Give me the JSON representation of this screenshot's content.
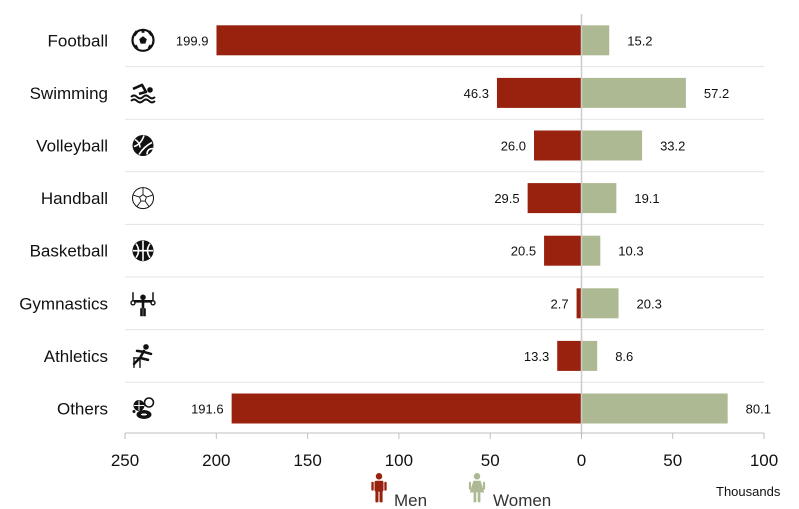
{
  "chart_data": {
    "type": "bar",
    "orientation": "horizontal-diverging",
    "categories": [
      "Football",
      "Swimming",
      "Volleyball",
      "Handball",
      "Basketball",
      "Gymnastics",
      "Athletics",
      "Others"
    ],
    "icons": [
      "soccer-ball-icon",
      "swimmer-icon",
      "volleyball-icon",
      "handball-icon",
      "basketball-icon",
      "gymnast-rings-icon",
      "hurdler-icon",
      "mixed-balls-icon"
    ],
    "series": [
      {
        "name": "Men",
        "color": "#98220d",
        "values": [
          199.9,
          46.3,
          26.0,
          29.5,
          20.5,
          2.7,
          13.3,
          191.6
        ],
        "labels": [
          "199.9",
          "46.3",
          "26.0",
          "29.5",
          "20.5",
          "2.7",
          "13.3",
          "191.6"
        ]
      },
      {
        "name": "Women",
        "color": "#adb992",
        "values": [
          15.2,
          57.2,
          33.2,
          19.1,
          10.3,
          20.3,
          8.6,
          80.1
        ],
        "labels": [
          "15.2",
          "57.2",
          "33.2",
          "19.1",
          "10.3",
          "20.3",
          "8.6",
          "80.1"
        ]
      }
    ],
    "xticks": [
      "250",
      "200",
      "150",
      "100",
      "50",
      "0",
      "50",
      "100"
    ],
    "xlim_left": 250,
    "xlim_right": 100,
    "unit_label": "Thousands",
    "legend_position": "bottom-center",
    "grid": "horizontal row separators"
  }
}
